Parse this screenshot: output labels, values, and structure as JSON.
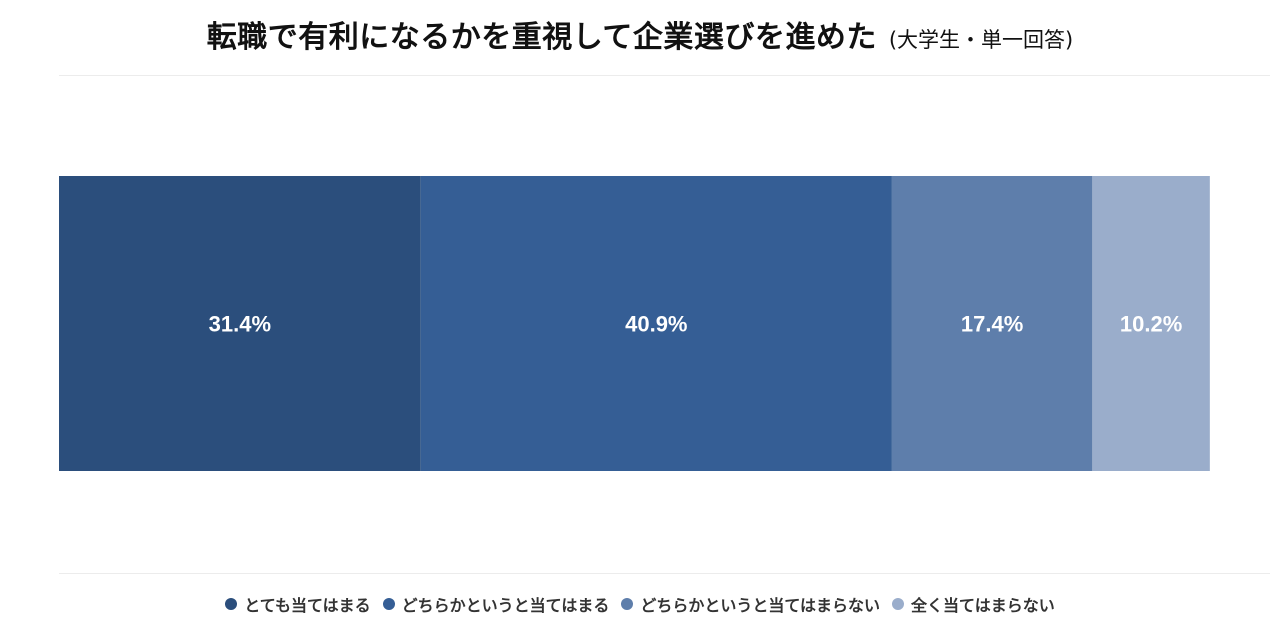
{
  "chart_data": {
    "type": "bar",
    "orientation": "horizontal-stacked-100",
    "title": "転職で有利になるかを重視して企業選びを進めた",
    "subtitle": "(大学生・単一回答)",
    "series": [
      {
        "name": "とても当てはまる",
        "value": 31.4,
        "label": "31.4%",
        "color": "#2b4e7c"
      },
      {
        "name": "どちらかというと当てはまる",
        "value": 40.9,
        "label": "40.9%",
        "color": "#355e95"
      },
      {
        "name": "どちらかというと当てはまらない",
        "value": 17.4,
        "label": "17.4%",
        "color": "#5e7eab"
      },
      {
        "name": "全く当てはまらない",
        "value": 10.2,
        "label": "10.2%",
        "color": "#9aadcb"
      }
    ],
    "xlim": [
      0,
      100
    ],
    "legend_position": "bottom",
    "grid": false
  }
}
